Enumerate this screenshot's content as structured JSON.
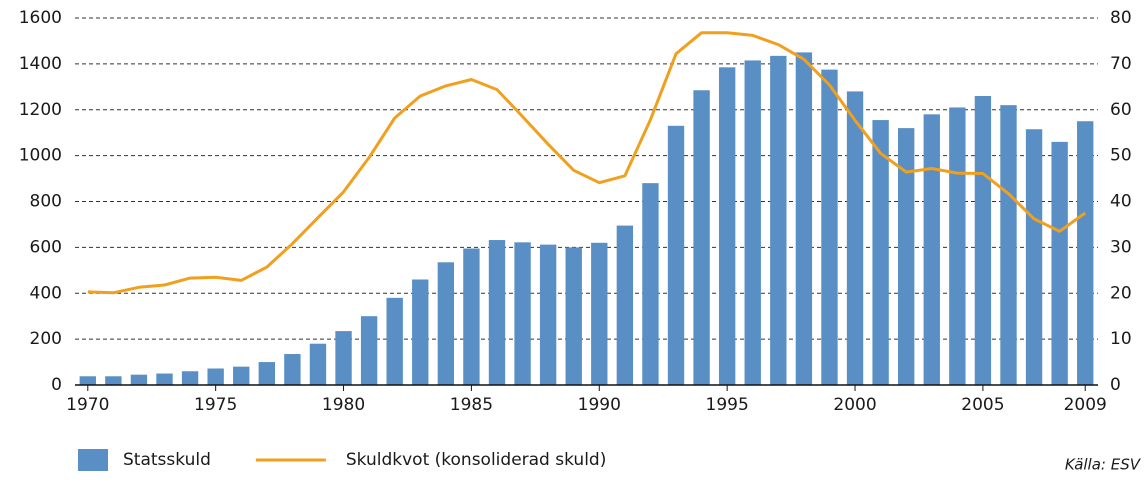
{
  "chart_data": {
    "type": "bar_line",
    "categories": [
      "1970",
      null,
      null,
      null,
      null,
      "1975",
      null,
      null,
      null,
      null,
      "1980",
      null,
      null,
      null,
      null,
      "1985",
      null,
      null,
      null,
      null,
      "1990",
      null,
      null,
      null,
      null,
      "1995",
      null,
      null,
      null,
      null,
      "2000",
      null,
      null,
      null,
      null,
      "2005",
      null,
      null,
      null,
      "2009"
    ],
    "series": [
      {
        "name": "Statsskuld",
        "type": "bar",
        "color": "#5a8fc5",
        "values": [
          38,
          38,
          45,
          50,
          60,
          72,
          80,
          100,
          135,
          180,
          235,
          300,
          380,
          460,
          535,
          595,
          632,
          622,
          612,
          600,
          620,
          695,
          880,
          1130,
          1285,
          1385,
          1415,
          1435,
          1450,
          1375,
          1280,
          1155,
          1120,
          1180,
          1210,
          1260,
          1220,
          1115,
          1060,
          1150
        ]
      },
      {
        "name": "Skuldkvot (konsoliderad skuld)",
        "type": "line",
        "axis": "y2",
        "color": "#f0a01e",
        "values": [
          20.3,
          20.1,
          21.3,
          21.8,
          23.3,
          23.5,
          22.8,
          25.7,
          30.8,
          36.5,
          42.1,
          49.6,
          58.2,
          63,
          65.2,
          66.6,
          64.4,
          58.5,
          52.5,
          46.8,
          44.1,
          45.6,
          57.8,
          72.2,
          76.8,
          76.8,
          76.2,
          74.2,
          71,
          65.4,
          57.7,
          50.5,
          46.4,
          47.2,
          46.2,
          46.1,
          41.7,
          36.2,
          33.5,
          37.5
        ]
      }
    ],
    "ylim": [
      0,
      1600
    ],
    "yticks": [
      0,
      200,
      400,
      600,
      800,
      1000,
      1200,
      1400,
      1600
    ],
    "y2lim": [
      0,
      80
    ],
    "y2ticks": [
      0,
      10,
      20,
      30,
      40,
      50,
      60,
      70,
      80
    ],
    "grid": true,
    "legend": "bottom",
    "source": "Källa: ESV"
  }
}
